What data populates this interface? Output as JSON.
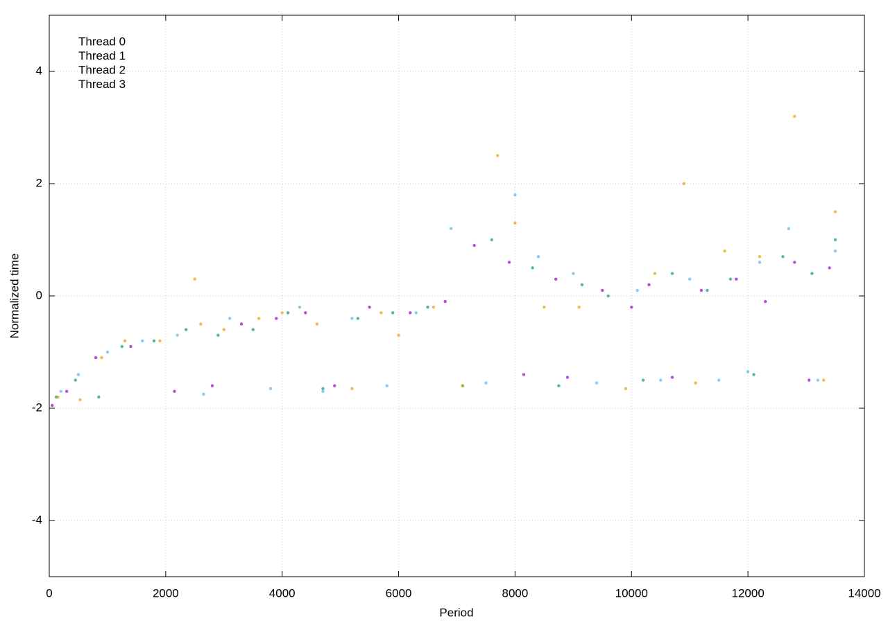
{
  "chart_data": {
    "type": "scatter",
    "x_label": "Period",
    "y_label": "Normalized time",
    "xlim": [
      0,
      14000
    ],
    "ylim": [
      -5,
      5
    ],
    "xticks": [
      0,
      2000,
      4000,
      6000,
      8000,
      10000,
      12000,
      14000
    ],
    "yticks": [
      -4,
      -2,
      0,
      2,
      4
    ],
    "grid": true,
    "legend": "top-left",
    "series": [
      {
        "name": "Thread 0",
        "color": "#9400d3",
        "x": [
          50,
          300,
          800,
          1400,
          2150,
          2800,
          3300,
          3900,
          4400,
          4900,
          5500,
          6200,
          6800,
          7300,
          7900,
          8150,
          8700,
          8900,
          9500,
          10000,
          10300,
          10700,
          11200,
          11800,
          12300,
          12800,
          13050,
          13400
        ],
        "values": [
          -1.95,
          -1.7,
          -1.1,
          -0.9,
          -1.7,
          -1.6,
          -0.5,
          -0.4,
          -0.3,
          -1.6,
          -0.2,
          -0.3,
          -0.1,
          0.9,
          0.6,
          -1.4,
          0.3,
          -1.45,
          0.1,
          -0.2,
          0.2,
          -1.45,
          0.1,
          0.3,
          -0.1,
          0.6,
          -1.5,
          0.5
        ]
      },
      {
        "name": "Thread 1",
        "color": "#009e73",
        "x": [
          120,
          450,
          850,
          1250,
          1800,
          2350,
          2900,
          3500,
          4100,
          4700,
          5300,
          5900,
          6500,
          7100,
          7600,
          8300,
          8750,
          9150,
          9600,
          10200,
          10700,
          11300,
          11700,
          12100,
          12600,
          13100,
          13500
        ],
        "values": [
          -1.8,
          -1.5,
          -1.8,
          -0.9,
          -0.8,
          -0.6,
          -0.7,
          -0.6,
          -0.3,
          -1.65,
          -0.4,
          -0.3,
          -0.2,
          -1.6,
          1.0,
          0.5,
          -1.6,
          0.2,
          0.0,
          -1.5,
          0.4,
          0.1,
          0.3,
          -1.4,
          0.7,
          0.4,
          1.0
        ]
      },
      {
        "name": "Thread 2",
        "color": "#56b4e9",
        "x": [
          200,
          500,
          1000,
          1600,
          2200,
          2650,
          3100,
          3800,
          4300,
          4700,
          5200,
          5800,
          6300,
          6900,
          7500,
          8000,
          8400,
          9000,
          9400,
          10100,
          10500,
          11000,
          11500,
          12000,
          12200,
          12700,
          13200,
          13500
        ],
        "values": [
          -1.7,
          -1.4,
          -1.0,
          -0.8,
          -0.7,
          -1.75,
          -0.4,
          -1.65,
          -0.2,
          -1.7,
          -0.4,
          -1.6,
          -0.3,
          1.2,
          -1.55,
          1.8,
          0.7,
          0.4,
          -1.55,
          0.1,
          -1.5,
          0.3,
          -1.5,
          -1.35,
          0.6,
          1.2,
          -1.5,
          0.8
        ]
      },
      {
        "name": "Thread 3",
        "color": "#e69f00",
        "x": [
          150,
          530,
          900,
          1300,
          1900,
          2500,
          2600,
          3000,
          3600,
          4000,
          4600,
          5200,
          5700,
          6000,
          6600,
          7100,
          7700,
          8000,
          8500,
          9100,
          9900,
          10400,
          10900,
          11100,
          11600,
          12200,
          12800,
          13300,
          13500
        ],
        "values": [
          -1.8,
          -1.85,
          -1.1,
          -0.8,
          -0.8,
          0.3,
          -0.5,
          -0.6,
          -0.4,
          -0.3,
          -0.5,
          -1.65,
          -0.3,
          -0.7,
          -0.2,
          -1.6,
          2.5,
          1.3,
          -0.2,
          -0.2,
          -1.65,
          0.4,
          2.0,
          -1.55,
          0.8,
          0.7,
          3.2,
          -1.5,
          1.5
        ]
      }
    ]
  }
}
